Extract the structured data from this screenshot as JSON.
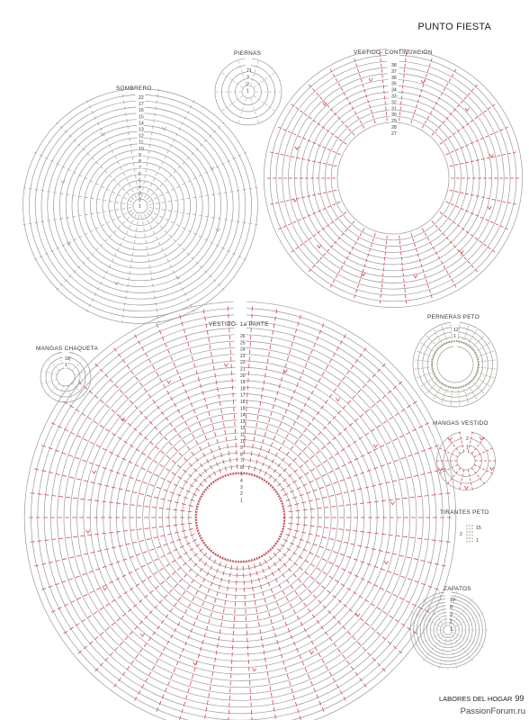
{
  "header": {
    "title": "PUNTO FIESTA"
  },
  "footer": {
    "publication": "LABORES DEL HOGAR",
    "page": "99",
    "watermark": "PassionForum.ru"
  },
  "colors": {
    "ring": "#9a9a9a",
    "stitch_grey": "#a5a5a5",
    "stitch_red": "#d4474f",
    "stitch_green": "#8fa07a",
    "text": "#333333"
  },
  "diagrams": {
    "sombrero": {
      "title": "SOMBRERO",
      "rows": [
        "22",
        "17",
        "16",
        "15",
        "14",
        "13",
        "12",
        "11",
        "10",
        "9",
        "8",
        "7",
        "6",
        "5",
        "4",
        "3",
        "2",
        "1"
      ]
    },
    "piernas": {
      "title": "PIERNAS",
      "rows": [
        "21",
        "3",
        "2",
        "1"
      ]
    },
    "vestido_cont": {
      "title": "VESTIDO- CONTINUACIÓN",
      "rows": [
        "38",
        "37",
        "36",
        "35",
        "34",
        "33",
        "32",
        "31",
        "30",
        "29",
        "28",
        "27"
      ]
    },
    "vestido_1a": {
      "title": "VESTIDO- 1a PARTE",
      "rows": [
        "26",
        "25",
        "24",
        "23",
        "22",
        "21",
        "20",
        "19",
        "18",
        "17",
        "16",
        "15",
        "14",
        "13",
        "12",
        "11",
        "10",
        "9",
        "8",
        "7",
        "6",
        "5",
        "4",
        "3",
        "2",
        "1"
      ]
    },
    "mangas_chaqueta": {
      "title": "MANGAS CHAQUETA",
      "rows": [
        "18",
        "1"
      ]
    },
    "perneras_peto": {
      "title": "PERNERAS PETO",
      "rows": [
        "12",
        "1"
      ]
    },
    "mangas_vestido": {
      "title": "MANGAS VESTIDO",
      "rows": [
        "2",
        "1"
      ]
    },
    "tirantes_peto": {
      "title": "TIRANTES PETO",
      "rows": [
        "15",
        "2",
        "1"
      ]
    },
    "zapatos": {
      "title": "ZAPATOS",
      "rows": [
        "10",
        "8",
        "3",
        "2",
        "1"
      ]
    }
  }
}
